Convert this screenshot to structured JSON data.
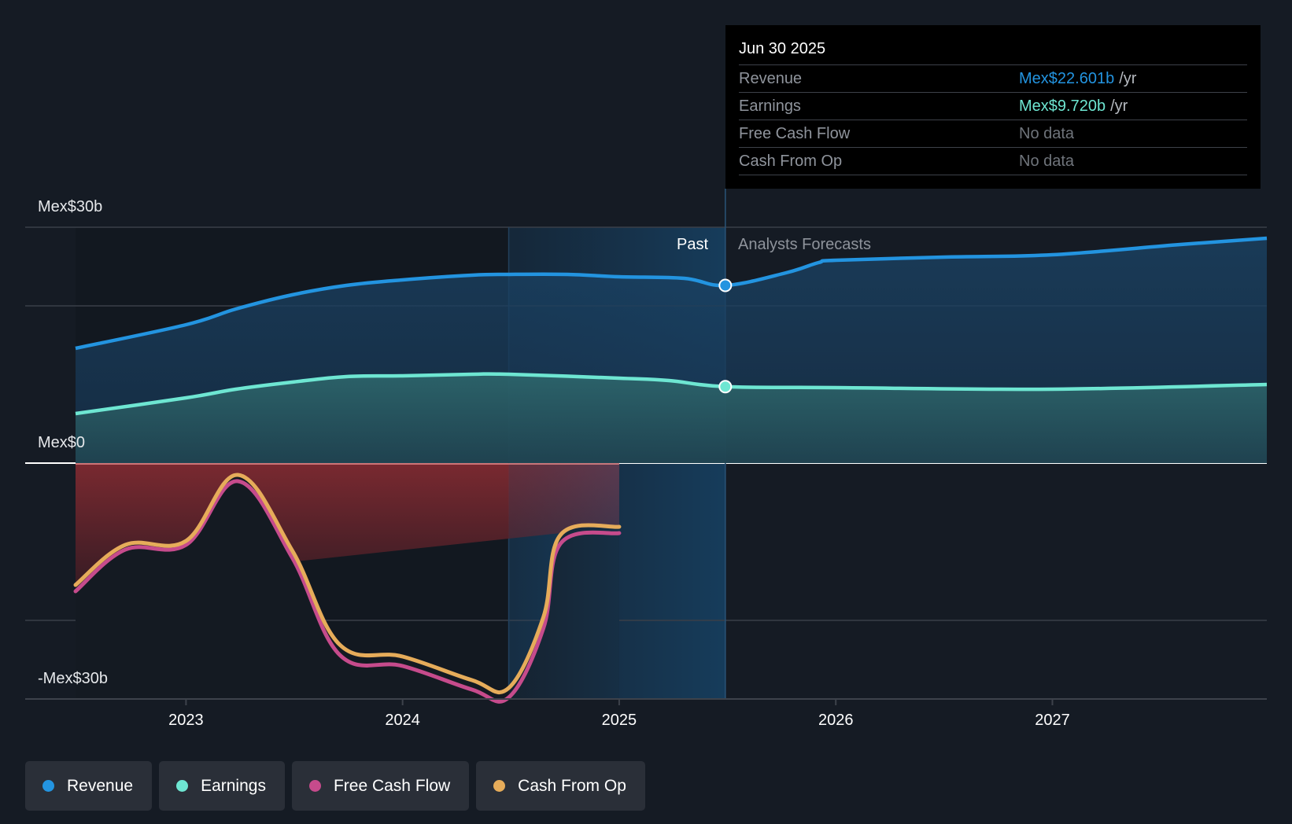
{
  "chart_data": {
    "type": "area",
    "title": "",
    "currency_prefix": "Mex$",
    "y_axis": {
      "labels": [
        "Mex$30b",
        "Mex$0",
        "-Mex$30b"
      ],
      "ylim": [
        -30,
        30
      ],
      "unit": "billions",
      "grid_values": [
        30,
        20,
        0,
        -20,
        -30
      ]
    },
    "x_axis": {
      "tick_labels": [
        "2023",
        "2024",
        "2025",
        "2026",
        "2027"
      ],
      "tick_values": [
        2023,
        2024,
        2025,
        2026,
        2027
      ],
      "xlim": [
        2022.49,
        2027.99
      ]
    },
    "regions": {
      "past_label": "Past",
      "forecast_label": "Analysts Forecasts",
      "past_end": 2025.49,
      "highlight_start": 2024.49
    },
    "series": [
      {
        "name": "Revenue",
        "color": "#2394e0",
        "points": [
          [
            2022.49,
            14.6
          ],
          [
            2023.0,
            17.6
          ],
          [
            2023.23,
            19.6
          ],
          [
            2023.49,
            21.4
          ],
          [
            2023.74,
            22.6
          ],
          [
            2024.0,
            23.3
          ],
          [
            2024.32,
            23.9
          ],
          [
            2024.49,
            24.0
          ],
          [
            2024.76,
            24.0
          ],
          [
            2025.0,
            23.7
          ],
          [
            2025.3,
            23.5
          ],
          [
            2025.49,
            22.6
          ]
        ],
        "forecast": [
          [
            2025.49,
            22.6
          ],
          [
            2025.77,
            24.2
          ],
          [
            2025.92,
            25.5
          ],
          [
            2026.0,
            25.8
          ],
          [
            2026.5,
            26.2
          ],
          [
            2027.0,
            26.5
          ],
          [
            2027.59,
            27.8
          ],
          [
            2027.99,
            28.6
          ]
        ]
      },
      {
        "name": "Earnings",
        "color": "#6ee6d2",
        "points": [
          [
            2022.49,
            6.3
          ],
          [
            2023.0,
            8.3
          ],
          [
            2023.23,
            9.4
          ],
          [
            2023.49,
            10.3
          ],
          [
            2023.74,
            11.0
          ],
          [
            2024.0,
            11.1
          ],
          [
            2024.32,
            11.3
          ],
          [
            2024.49,
            11.3
          ],
          [
            2025.0,
            10.8
          ],
          [
            2025.23,
            10.5
          ],
          [
            2025.49,
            9.72
          ]
        ],
        "forecast": [
          [
            2025.49,
            9.72
          ],
          [
            2026.0,
            9.6
          ],
          [
            2027.0,
            9.4
          ],
          [
            2027.99,
            10.0
          ]
        ]
      },
      {
        "name": "Free Cash Flow",
        "color": "#c64b8c",
        "points": [
          [
            2022.49,
            -16.3
          ],
          [
            2022.72,
            -11.0
          ],
          [
            2023.0,
            -10.4
          ],
          [
            2023.24,
            -2.3
          ],
          [
            2023.49,
            -12.0
          ],
          [
            2023.71,
            -24.4
          ],
          [
            2024.0,
            -25.8
          ],
          [
            2024.32,
            -28.8
          ],
          [
            2024.49,
            -29.8
          ],
          [
            2024.65,
            -21.0
          ],
          [
            2024.73,
            -10.2
          ],
          [
            2025.0,
            -8.9
          ]
        ]
      },
      {
        "name": "Cash From Op",
        "color": "#e6ac5a",
        "points": [
          [
            2022.49,
            -15.5
          ],
          [
            2022.72,
            -10.4
          ],
          [
            2023.0,
            -9.9
          ],
          [
            2023.24,
            -1.5
          ],
          [
            2023.49,
            -11.1
          ],
          [
            2023.71,
            -23.1
          ],
          [
            2024.0,
            -24.6
          ],
          [
            2024.32,
            -27.6
          ],
          [
            2024.49,
            -28.6
          ],
          [
            2024.65,
            -19.6
          ],
          [
            2024.73,
            -9.1
          ],
          [
            2025.0,
            -8.1
          ]
        ]
      }
    ]
  },
  "tooltip": {
    "date": "Jun 30 2025",
    "rows": [
      {
        "label": "Revenue",
        "value": "Mex$22.601b",
        "unit": "/yr",
        "color": "#2394e0"
      },
      {
        "label": "Earnings",
        "value": "Mex$9.720b",
        "unit": "/yr",
        "color": "#6ee6d2"
      },
      {
        "label": "Free Cash Flow",
        "value": "No data",
        "unit": "",
        "color": "#6f747b"
      },
      {
        "label": "Cash From Op",
        "value": "No data",
        "unit": "",
        "color": "#6f747b"
      }
    ]
  },
  "legend": [
    {
      "label": "Revenue",
      "color": "#2394e0"
    },
    {
      "label": "Earnings",
      "color": "#6ee6d2"
    },
    {
      "label": "Free Cash Flow",
      "color": "#c64b8c"
    },
    {
      "label": "Cash From Op",
      "color": "#e6ac5a"
    }
  ]
}
